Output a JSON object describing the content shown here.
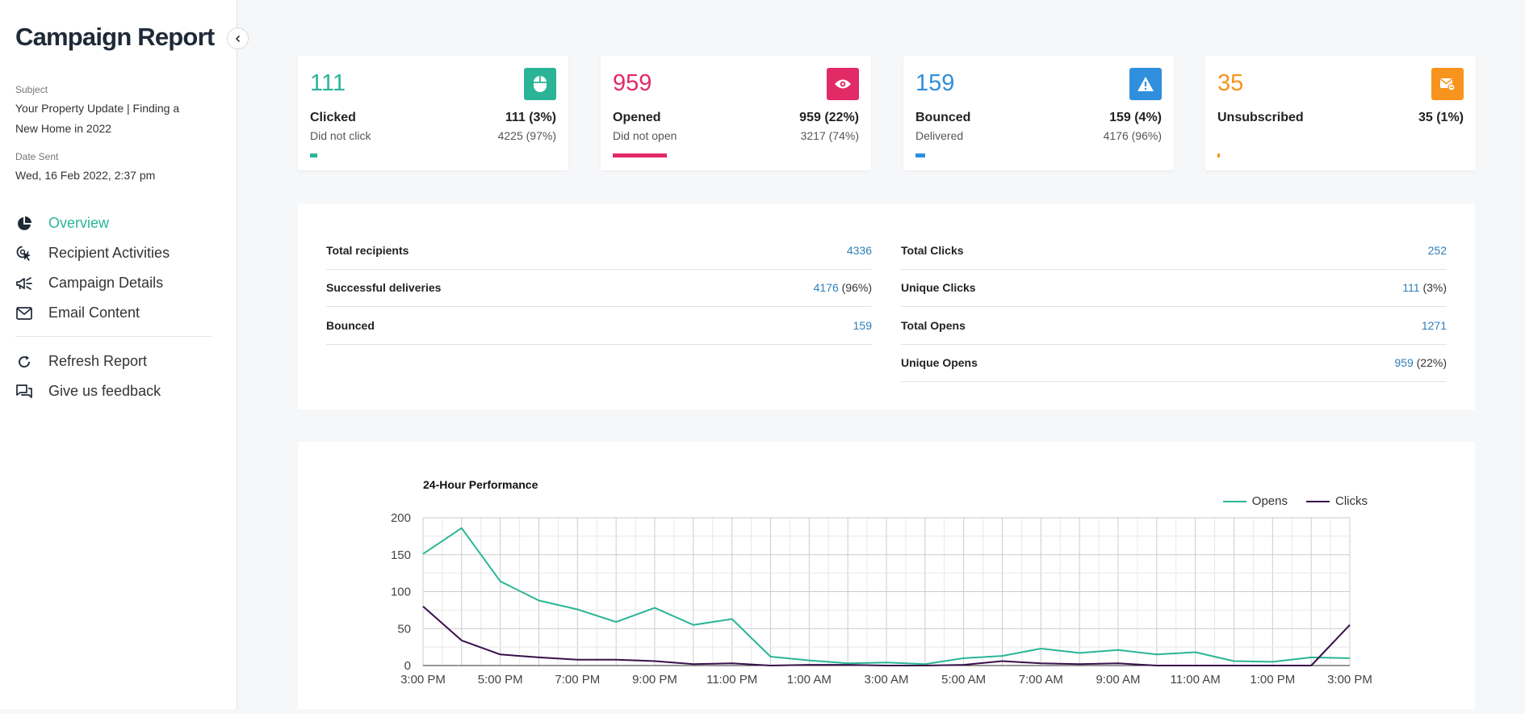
{
  "sidebar": {
    "title": "Campaign Report",
    "subject_label": "Subject",
    "subject_value": "Your Property Update | Finding a New Home in 2022",
    "date_label": "Date Sent",
    "date_value": "Wed, 16 Feb 2022, 2:37 pm",
    "nav": [
      {
        "label": "Overview",
        "icon": "pie-chart-icon"
      },
      {
        "label": "Recipient Activities",
        "icon": "cursor-click-icon"
      },
      {
        "label": "Campaign Details",
        "icon": "megaphone-icon"
      },
      {
        "label": "Email Content",
        "icon": "envelope-icon"
      }
    ],
    "nav2": [
      {
        "label": "Refresh Report",
        "icon": "refresh-icon"
      },
      {
        "label": "Give us feedback",
        "icon": "chat-icon"
      }
    ]
  },
  "cards": [
    {
      "number": "111",
      "label": "Clicked",
      "value": "111 (3%)",
      "sub_label": "Did not click",
      "sub_value": "4225 (97%)",
      "color": "#2bb596",
      "icon": "mouse-icon",
      "fraction": 0.03
    },
    {
      "number": "959",
      "label": "Opened",
      "value": "959 (22%)",
      "sub_label": "Did not open",
      "sub_value": "3217 (74%)",
      "color": "#e22a67",
      "icon": "eye-icon",
      "fraction": 0.22
    },
    {
      "number": "159",
      "label": "Bounced",
      "value": "159 (4%)",
      "sub_label": "Delivered",
      "sub_value": "4176 (96%)",
      "color": "#2f8fdc",
      "icon": "warning-icon",
      "fraction": 0.04
    },
    {
      "number": "35",
      "label": "Unsubscribed",
      "value": "35 (1%)",
      "sub_label": "",
      "sub_value": "",
      "color": "#f7941d",
      "icon": "mail-unsubscribe-icon",
      "fraction": 0.01
    }
  ],
  "summary": {
    "left": [
      {
        "key": "Total recipients",
        "value": "4336",
        "extra": ""
      },
      {
        "key": "Successful deliveries",
        "value": "4176",
        "extra": "(96%)"
      },
      {
        "key": "Bounced",
        "value": "159",
        "extra": ""
      }
    ],
    "right": [
      {
        "key": "Total Clicks",
        "value": "252",
        "extra": ""
      },
      {
        "key": "Unique Clicks",
        "value": "111",
        "extra": "(3%)"
      },
      {
        "key": "Total Opens",
        "value": "1271",
        "extra": ""
      },
      {
        "key": "Unique Opens",
        "value": "959",
        "extra": "(22%)"
      }
    ]
  },
  "chart_data": {
    "type": "line",
    "title": "24-Hour Performance",
    "xlabel": "",
    "ylabel": "",
    "ylim": [
      0,
      200
    ],
    "yticks": [
      0,
      50,
      100,
      150,
      200
    ],
    "x_tick_labels": [
      "3:00 PM",
      "5:00 PM",
      "7:00 PM",
      "9:00 PM",
      "11:00 PM",
      "1:00 AM",
      "3:00 AM",
      "5:00 AM",
      "7:00 AM",
      "9:00 AM",
      "11:00 AM",
      "1:00 PM",
      "3:00 PM"
    ],
    "x": [
      "3:00 PM",
      "4:00 PM",
      "5:00 PM",
      "6:00 PM",
      "7:00 PM",
      "8:00 PM",
      "9:00 PM",
      "10:00 PM",
      "11:00 PM",
      "12:00 AM",
      "1:00 AM",
      "2:00 AM",
      "3:00 AM",
      "4:00 AM",
      "5:00 AM",
      "6:00 AM",
      "7:00 AM",
      "8:00 AM",
      "9:00 AM",
      "10:00 AM",
      "11:00 AM",
      "12:00 PM",
      "1:00 PM",
      "2:00 PM",
      "3:00 PM"
    ],
    "legend_position": "top-right",
    "grid": true,
    "series": [
      {
        "name": "Opens",
        "color": "#2bb596",
        "values": [
          151,
          186,
          114,
          88,
          76,
          59,
          78,
          55,
          63,
          12,
          7,
          3,
          4,
          2,
          10,
          13,
          23,
          17,
          21,
          15,
          18,
          6,
          5,
          11,
          10
        ]
      },
      {
        "name": "Clicks",
        "color": "#3a0f4a",
        "values": [
          80,
          34,
          15,
          11,
          8,
          8,
          6,
          2,
          3,
          0,
          1,
          1,
          0,
          0,
          1,
          6,
          3,
          2,
          3,
          0,
          0,
          0,
          0,
          0,
          55
        ]
      }
    ]
  }
}
